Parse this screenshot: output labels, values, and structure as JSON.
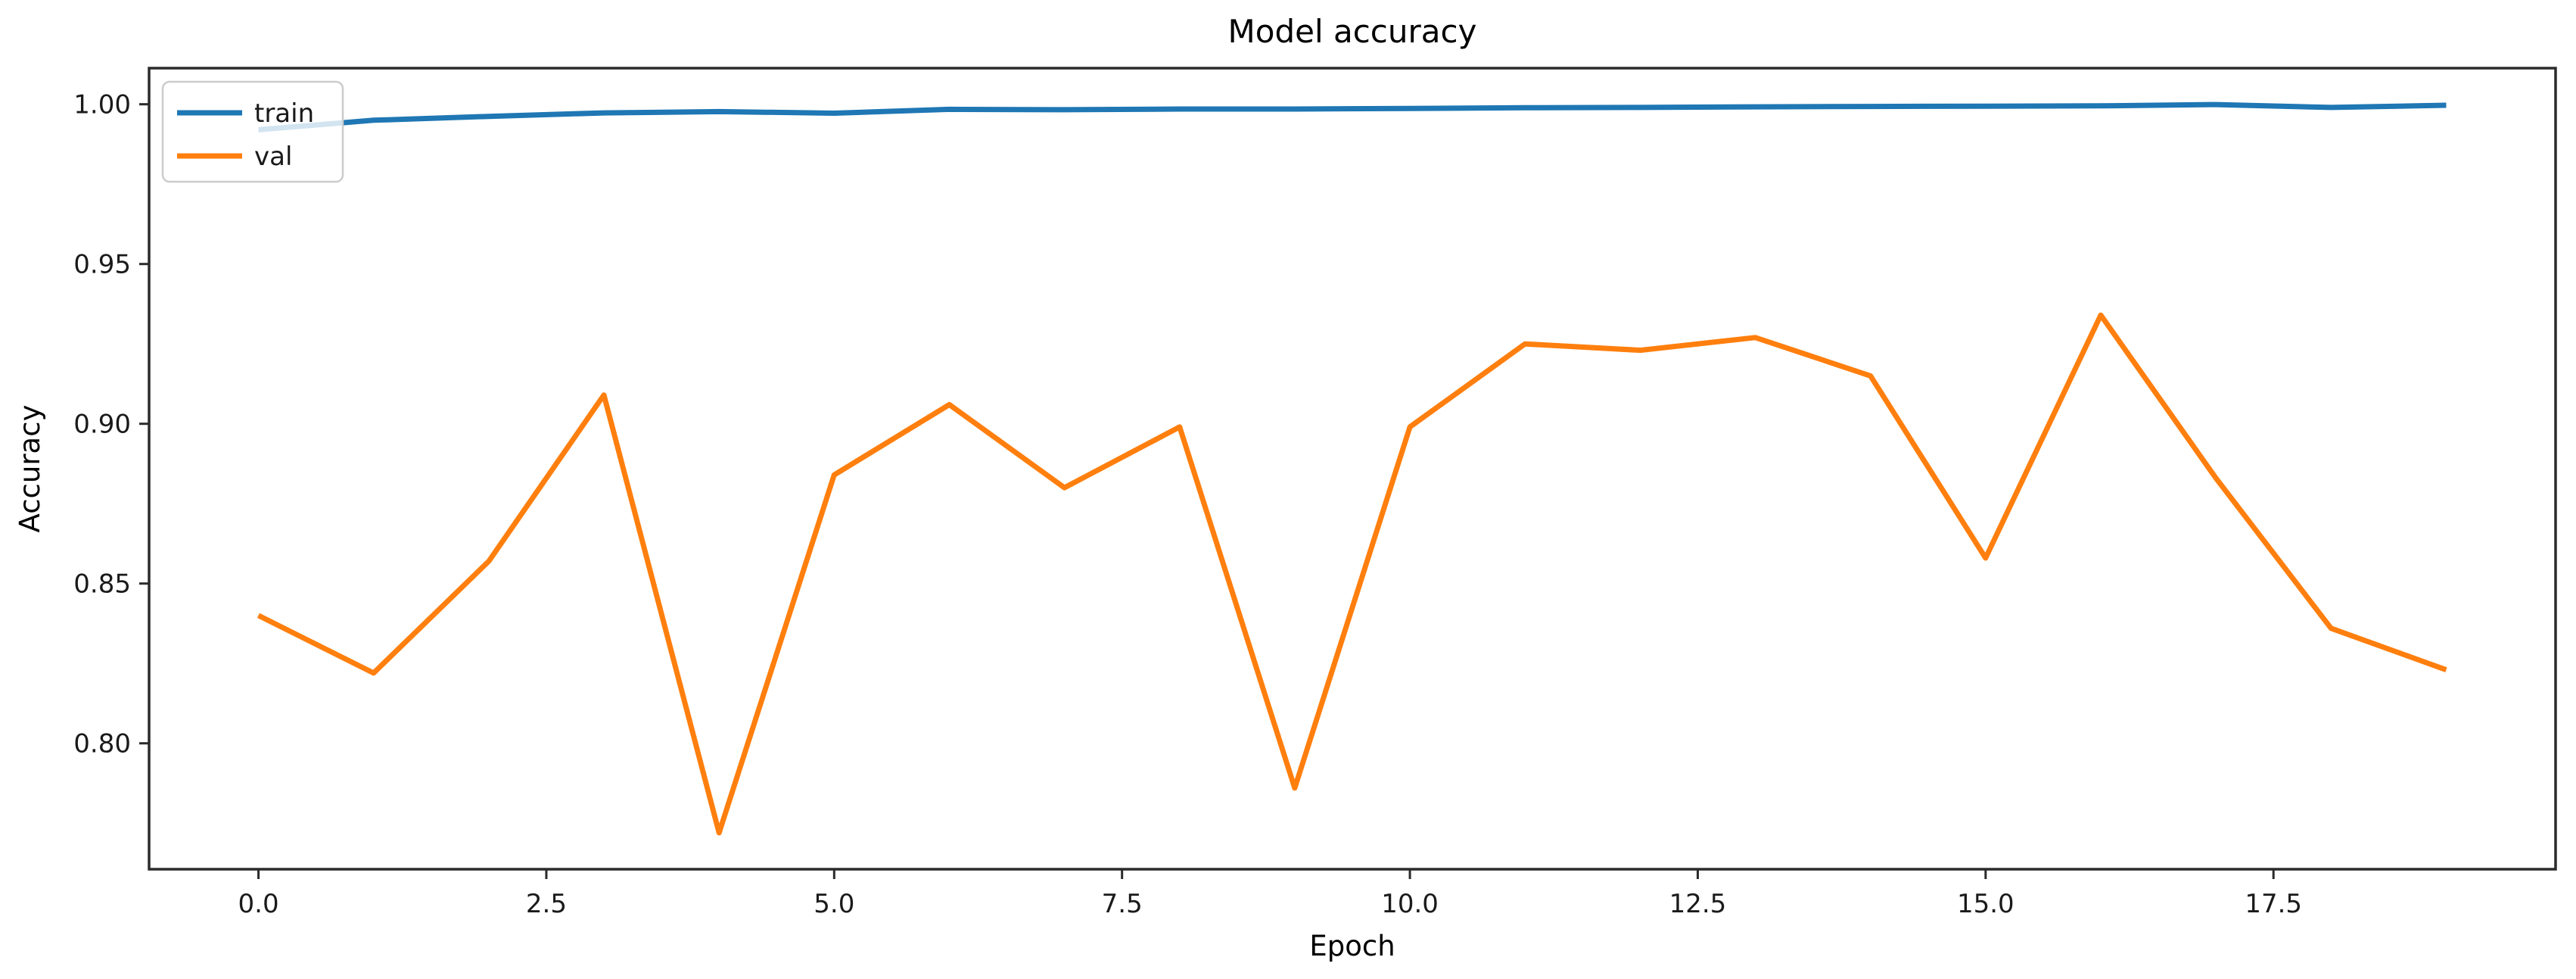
{
  "chart_data": {
    "type": "line",
    "title": "Model accuracy",
    "xlabel": "Epoch",
    "ylabel": "Accuracy",
    "grid": false,
    "legend_position": "upper left",
    "x": [
      0,
      1,
      2,
      3,
      4,
      5,
      6,
      7,
      8,
      9,
      10,
      11,
      12,
      13,
      14,
      15,
      16,
      17,
      18,
      19
    ],
    "series": [
      {
        "name": "train",
        "color": "#1f77b4",
        "values": [
          0.992,
          0.995,
          0.9962,
          0.9973,
          0.9977,
          0.9972,
          0.9984,
          0.9983,
          0.9985,
          0.9985,
          0.9987,
          0.9989,
          0.999,
          0.9992,
          0.9993,
          0.9994,
          0.9995,
          0.9999,
          0.999,
          0.9997
        ]
      },
      {
        "name": "val",
        "color": "#ff7f0e",
        "values": [
          0.84,
          0.822,
          0.857,
          0.909,
          0.772,
          0.884,
          0.906,
          0.88,
          0.899,
          0.786,
          0.899,
          0.925,
          0.923,
          0.927,
          0.915,
          0.858,
          0.934,
          0.883,
          0.836,
          0.823
        ]
      }
    ],
    "x_ticks": {
      "values": [
        0.0,
        2.5,
        5.0,
        7.5,
        10.0,
        12.5,
        15.0,
        17.5
      ],
      "labels": [
        "0.0",
        "2.5",
        "5.0",
        "7.5",
        "10.0",
        "12.5",
        "15.0",
        "17.5"
      ]
    },
    "y_ticks": {
      "values": [
        1.0,
        0.95,
        0.9,
        0.85,
        0.8
      ],
      "labels": [
        "1.00",
        "0.95",
        "0.90",
        "0.85",
        "0.80"
      ]
    },
    "xlim": [
      -0.95,
      19.95
    ],
    "ylim": [
      0.7606,
      1.0113
    ],
    "spine_color": "#2b2b2b",
    "legend_border_color": "#cccccc"
  }
}
